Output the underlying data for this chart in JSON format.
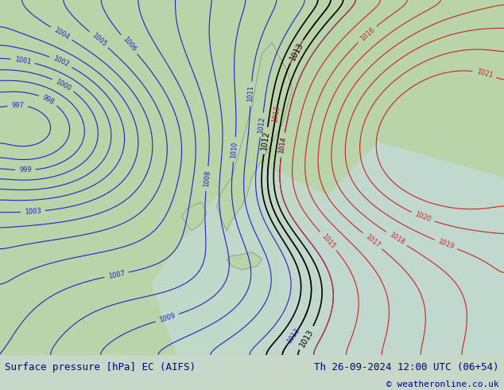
{
  "title_left": "Surface pressure [hPa] EC (AIFS)",
  "title_right": "Th 26-09-2024 12:00 UTC (06+54)",
  "copyright": "© weatheronline.co.uk",
  "bg_color": "#c8d8c8",
  "map_bg_color": "#b8d4a8",
  "sea_color": "#d0e8d0",
  "border_color": "#888888",
  "blue_contour_color": "#2222cc",
  "red_contour_color": "#cc2222",
  "black_contour_color": "#000000",
  "label_color_blue": "#2222cc",
  "label_color_red": "#cc2222",
  "label_color_black": "#000000",
  "footer_bg": "#ffffff",
  "footer_text_color": "#00008b",
  "figsize": [
    6.34,
    4.9
  ],
  "dpi": 100
}
